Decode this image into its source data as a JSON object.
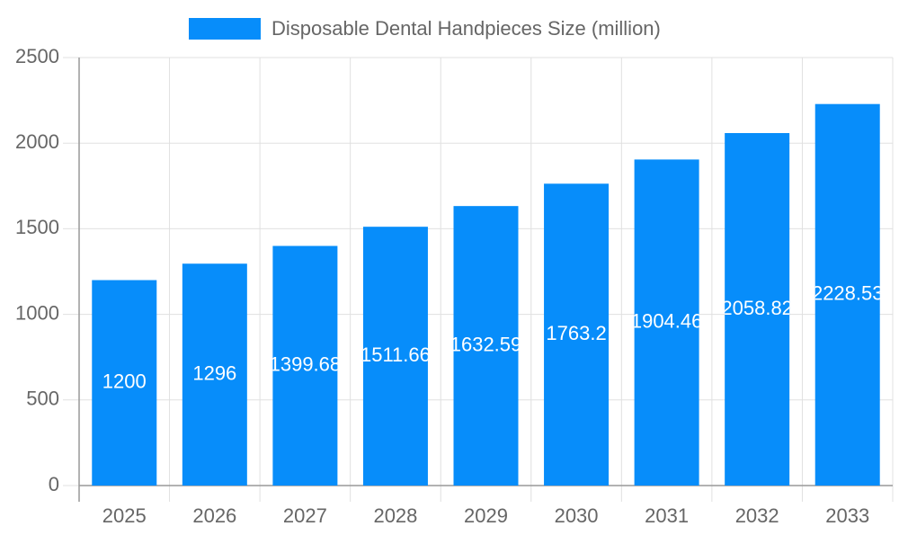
{
  "chart_data": {
    "type": "bar",
    "categories": [
      "2025",
      "2026",
      "2027",
      "2028",
      "2029",
      "2030",
      "2031",
      "2032",
      "2033"
    ],
    "series": [
      {
        "name": "Disposable Dental Handpieces Size (million)",
        "color": "#078dfa",
        "values": [
          1200,
          1296,
          1399.68,
          1511.66,
          1632.59,
          1763.2,
          1904.46,
          2058.82,
          2228.53
        ]
      }
    ],
    "ylim": [
      0,
      2500
    ],
    "yticks": [
      0,
      500,
      1000,
      1500,
      2000,
      2500
    ],
    "grid": true,
    "legend": "top"
  }
}
